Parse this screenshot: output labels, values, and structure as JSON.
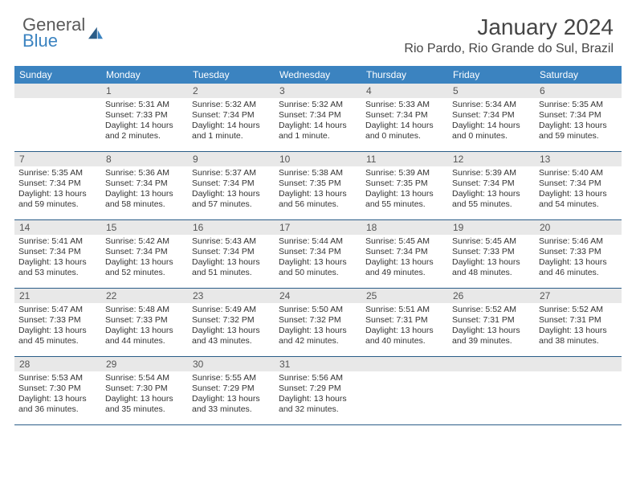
{
  "logo": {
    "text_top": "General",
    "text_bottom": "Blue"
  },
  "title": "January 2024",
  "location": "Rio Pardo, Rio Grande do Sul, Brazil",
  "header_bg": "#3b83c0",
  "dayNames": [
    "Sunday",
    "Monday",
    "Tuesday",
    "Wednesday",
    "Thursday",
    "Friday",
    "Saturday"
  ],
  "weeks": [
    [
      {
        "num": "",
        "sunrise": "",
        "sunset": "",
        "daylight": ""
      },
      {
        "num": "1",
        "sunrise": "Sunrise: 5:31 AM",
        "sunset": "Sunset: 7:33 PM",
        "daylight": "Daylight: 14 hours and 2 minutes."
      },
      {
        "num": "2",
        "sunrise": "Sunrise: 5:32 AM",
        "sunset": "Sunset: 7:34 PM",
        "daylight": "Daylight: 14 hours and 1 minute."
      },
      {
        "num": "3",
        "sunrise": "Sunrise: 5:32 AM",
        "sunset": "Sunset: 7:34 PM",
        "daylight": "Daylight: 14 hours and 1 minute."
      },
      {
        "num": "4",
        "sunrise": "Sunrise: 5:33 AM",
        "sunset": "Sunset: 7:34 PM",
        "daylight": "Daylight: 14 hours and 0 minutes."
      },
      {
        "num": "5",
        "sunrise": "Sunrise: 5:34 AM",
        "sunset": "Sunset: 7:34 PM",
        "daylight": "Daylight: 14 hours and 0 minutes."
      },
      {
        "num": "6",
        "sunrise": "Sunrise: 5:35 AM",
        "sunset": "Sunset: 7:34 PM",
        "daylight": "Daylight: 13 hours and 59 minutes."
      }
    ],
    [
      {
        "num": "7",
        "sunrise": "Sunrise: 5:35 AM",
        "sunset": "Sunset: 7:34 PM",
        "daylight": "Daylight: 13 hours and 59 minutes."
      },
      {
        "num": "8",
        "sunrise": "Sunrise: 5:36 AM",
        "sunset": "Sunset: 7:34 PM",
        "daylight": "Daylight: 13 hours and 58 minutes."
      },
      {
        "num": "9",
        "sunrise": "Sunrise: 5:37 AM",
        "sunset": "Sunset: 7:34 PM",
        "daylight": "Daylight: 13 hours and 57 minutes."
      },
      {
        "num": "10",
        "sunrise": "Sunrise: 5:38 AM",
        "sunset": "Sunset: 7:35 PM",
        "daylight": "Daylight: 13 hours and 56 minutes."
      },
      {
        "num": "11",
        "sunrise": "Sunrise: 5:39 AM",
        "sunset": "Sunset: 7:35 PM",
        "daylight": "Daylight: 13 hours and 55 minutes."
      },
      {
        "num": "12",
        "sunrise": "Sunrise: 5:39 AM",
        "sunset": "Sunset: 7:34 PM",
        "daylight": "Daylight: 13 hours and 55 minutes."
      },
      {
        "num": "13",
        "sunrise": "Sunrise: 5:40 AM",
        "sunset": "Sunset: 7:34 PM",
        "daylight": "Daylight: 13 hours and 54 minutes."
      }
    ],
    [
      {
        "num": "14",
        "sunrise": "Sunrise: 5:41 AM",
        "sunset": "Sunset: 7:34 PM",
        "daylight": "Daylight: 13 hours and 53 minutes."
      },
      {
        "num": "15",
        "sunrise": "Sunrise: 5:42 AM",
        "sunset": "Sunset: 7:34 PM",
        "daylight": "Daylight: 13 hours and 52 minutes."
      },
      {
        "num": "16",
        "sunrise": "Sunrise: 5:43 AM",
        "sunset": "Sunset: 7:34 PM",
        "daylight": "Daylight: 13 hours and 51 minutes."
      },
      {
        "num": "17",
        "sunrise": "Sunrise: 5:44 AM",
        "sunset": "Sunset: 7:34 PM",
        "daylight": "Daylight: 13 hours and 50 minutes."
      },
      {
        "num": "18",
        "sunrise": "Sunrise: 5:45 AM",
        "sunset": "Sunset: 7:34 PM",
        "daylight": "Daylight: 13 hours and 49 minutes."
      },
      {
        "num": "19",
        "sunrise": "Sunrise: 5:45 AM",
        "sunset": "Sunset: 7:33 PM",
        "daylight": "Daylight: 13 hours and 48 minutes."
      },
      {
        "num": "20",
        "sunrise": "Sunrise: 5:46 AM",
        "sunset": "Sunset: 7:33 PM",
        "daylight": "Daylight: 13 hours and 46 minutes."
      }
    ],
    [
      {
        "num": "21",
        "sunrise": "Sunrise: 5:47 AM",
        "sunset": "Sunset: 7:33 PM",
        "daylight": "Daylight: 13 hours and 45 minutes."
      },
      {
        "num": "22",
        "sunrise": "Sunrise: 5:48 AM",
        "sunset": "Sunset: 7:33 PM",
        "daylight": "Daylight: 13 hours and 44 minutes."
      },
      {
        "num": "23",
        "sunrise": "Sunrise: 5:49 AM",
        "sunset": "Sunset: 7:32 PM",
        "daylight": "Daylight: 13 hours and 43 minutes."
      },
      {
        "num": "24",
        "sunrise": "Sunrise: 5:50 AM",
        "sunset": "Sunset: 7:32 PM",
        "daylight": "Daylight: 13 hours and 42 minutes."
      },
      {
        "num": "25",
        "sunrise": "Sunrise: 5:51 AM",
        "sunset": "Sunset: 7:31 PM",
        "daylight": "Daylight: 13 hours and 40 minutes."
      },
      {
        "num": "26",
        "sunrise": "Sunrise: 5:52 AM",
        "sunset": "Sunset: 7:31 PM",
        "daylight": "Daylight: 13 hours and 39 minutes."
      },
      {
        "num": "27",
        "sunrise": "Sunrise: 5:52 AM",
        "sunset": "Sunset: 7:31 PM",
        "daylight": "Daylight: 13 hours and 38 minutes."
      }
    ],
    [
      {
        "num": "28",
        "sunrise": "Sunrise: 5:53 AM",
        "sunset": "Sunset: 7:30 PM",
        "daylight": "Daylight: 13 hours and 36 minutes."
      },
      {
        "num": "29",
        "sunrise": "Sunrise: 5:54 AM",
        "sunset": "Sunset: 7:30 PM",
        "daylight": "Daylight: 13 hours and 35 minutes."
      },
      {
        "num": "30",
        "sunrise": "Sunrise: 5:55 AM",
        "sunset": "Sunset: 7:29 PM",
        "daylight": "Daylight: 13 hours and 33 minutes."
      },
      {
        "num": "31",
        "sunrise": "Sunrise: 5:56 AM",
        "sunset": "Sunset: 7:29 PM",
        "daylight": "Daylight: 13 hours and 32 minutes."
      },
      {
        "num": "",
        "sunrise": "",
        "sunset": "",
        "daylight": ""
      },
      {
        "num": "",
        "sunrise": "",
        "sunset": "",
        "daylight": ""
      },
      {
        "num": "",
        "sunrise": "",
        "sunset": "",
        "daylight": ""
      }
    ]
  ]
}
